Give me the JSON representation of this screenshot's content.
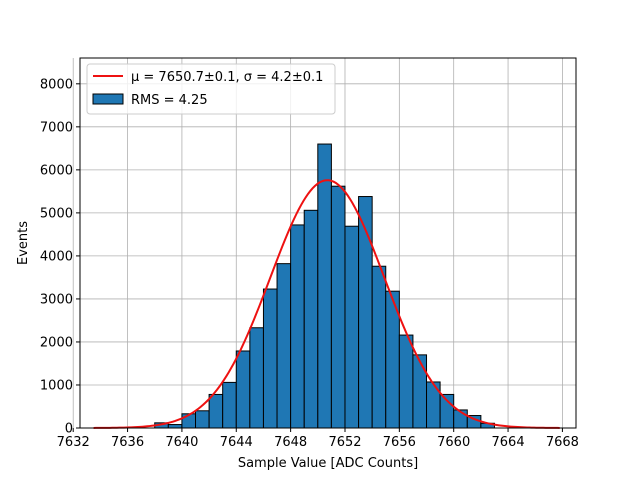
{
  "chart_data": {
    "type": "bar",
    "xlabel": "Sample Value [ADC Counts]",
    "ylabel": "Events",
    "xlim": [
      7632.5,
      7669
    ],
    "ylim": [
      0,
      8600
    ],
    "x_ticks": [
      7632,
      7636,
      7640,
      7644,
      7648,
      7652,
      7656,
      7660,
      7664,
      7668
    ],
    "y_ticks": [
      0,
      1000,
      2000,
      3000,
      4000,
      5000,
      6000,
      7000,
      8000
    ],
    "grid": true,
    "legend_placement": "upper-left",
    "histogram": {
      "name": "RMS = 4.25",
      "color": "#1f77b4",
      "edge_color": "#000000",
      "bin_width": 1,
      "bin_left_edges": [
        7638,
        7639,
        7640,
        7641,
        7642,
        7643,
        7644,
        7645,
        7646,
        7647,
        7648,
        7649,
        7650,
        7651,
        7652,
        7653,
        7654,
        7655,
        7656,
        7657,
        7658,
        7659,
        7660,
        7661,
        7662
      ],
      "counts": [
        120,
        80,
        330,
        400,
        780,
        1060,
        1790,
        2330,
        3230,
        3820,
        4720,
        5060,
        6600,
        5620,
        4690,
        5380,
        3760,
        3180,
        2160,
        1700,
        1070,
        780,
        420,
        290,
        110
      ]
    },
    "fit": {
      "name": "μ = 7650.7±0.1, σ = 4.2±0.1",
      "color": "#ee1111",
      "mu": 7650.7,
      "sigma": 4.2,
      "amplitude": 5760,
      "x_range": [
        7633.5,
        7667.8
      ]
    }
  }
}
